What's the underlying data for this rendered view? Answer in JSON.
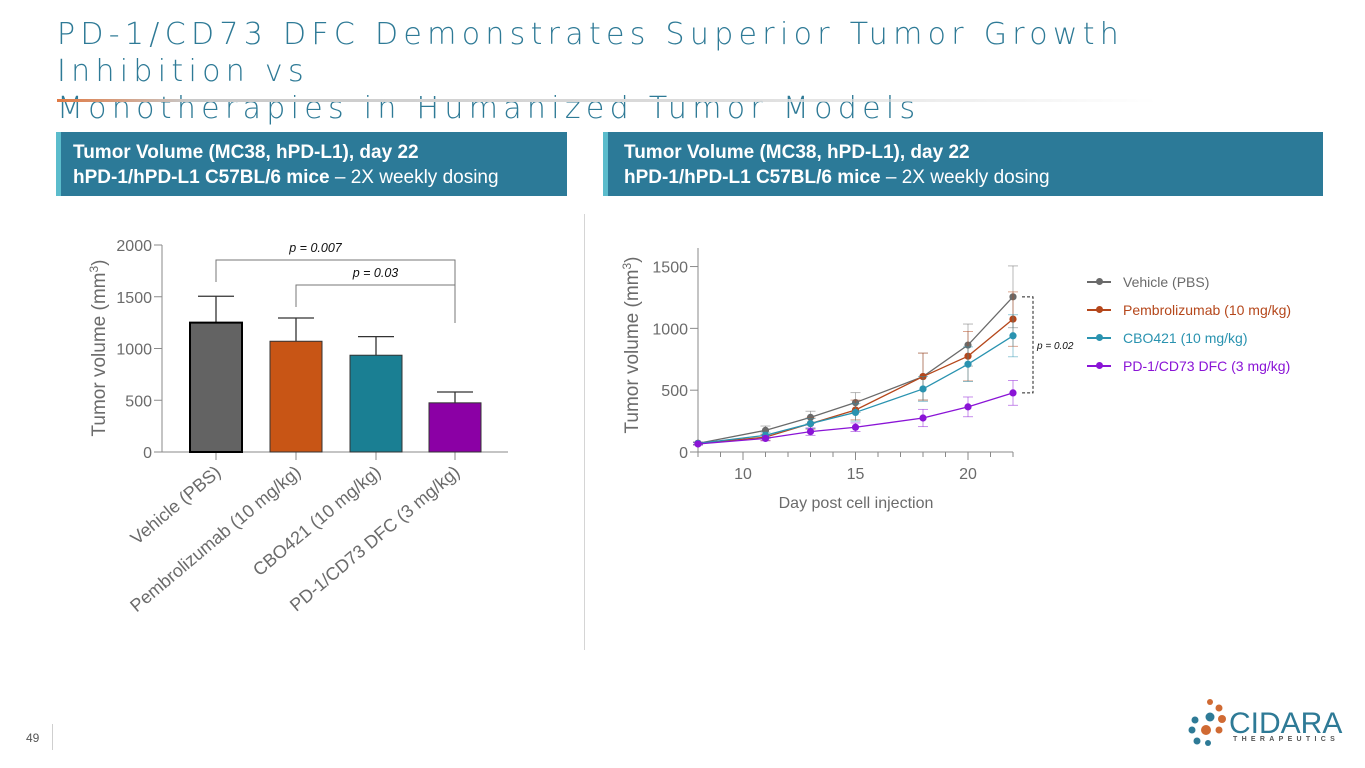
{
  "slide": {
    "title_line1": "PD-1/CD73 DFC Demonstrates Superior Tumor Growth Inhibition vs",
    "title_line2": "Monotherapies in Humanized Tumor Models",
    "page_number": "49",
    "accent_color": "#2e7a96",
    "rule_color": "#e07a44"
  },
  "left_panel": {
    "header_line1": "Tumor Volume (MC38, hPD-L1), day 22",
    "header_line2_bold": "hPD-1/hPD-L1 C57BL/6 mice",
    "header_line2_rest": " – 2X weekly dosing"
  },
  "right_panel": {
    "header_line1": "Tumor Volume  (MC38, hPD-L1), day 22",
    "header_line2_bold": "hPD-1/hPD-L1 C57BL/6 mice",
    "header_line2_rest": " – 2X weekly dosing"
  },
  "logo": {
    "name": "CIDARA",
    "subtitle": "THERAPEUTICS",
    "icon": "dot-cluster-icon"
  },
  "chart_data": [
    {
      "type": "bar",
      "title": "",
      "xlabel": "",
      "ylabel": "Tumor volume (mm³)",
      "ylabel_main": "Tumor volume (mm",
      "ylabel_sup": "3",
      "ylabel_close": ")",
      "ylim": [
        0,
        2000
      ],
      "yticks": [
        0,
        500,
        1000,
        1500,
        2000
      ],
      "ytick_labels": [
        "0",
        "500",
        "1000",
        "1500",
        "2000"
      ],
      "categories": [
        "Vehicle (PBS)",
        "Pembrolizumab (10 mg/kg)",
        "CBO421 (10 mg/kg)",
        "PD-1/CD73 DFC (3 mg/kg)"
      ],
      "values": [
        1250,
        1070,
        935,
        475
      ],
      "error_upper": [
        1505,
        1295,
        1115,
        580
      ],
      "colors": [
        "#636363",
        "#c85515",
        "#1a7f93",
        "#8b00a5"
      ],
      "annotations": [
        {
          "text": "p = 0.007",
          "from": 0,
          "to": 3
        },
        {
          "text": "p = 0.03",
          "from": 1,
          "to": 3
        }
      ],
      "grid": false
    },
    {
      "type": "line",
      "title": "",
      "xlabel": "Day post cell injection",
      "ylabel": "Tumor volume (mm³)",
      "ylabel_main": "Tumor volume (mm",
      "ylabel_sup": "3",
      "ylabel_close": ")",
      "xlim": [
        8,
        22
      ],
      "ylim": [
        0,
        1650
      ],
      "xticks": [
        10,
        15,
        20
      ],
      "xtick_labels": [
        "10",
        "15",
        "20"
      ],
      "yticks": [
        0,
        500,
        1000,
        1500
      ],
      "ytick_labels": [
        "0",
        "500",
        "1000",
        "1500"
      ],
      "x": [
        8,
        11,
        13,
        15,
        18,
        20,
        22
      ],
      "series": [
        {
          "name": "Vehicle (PBS)",
          "color": "#6a6a6a",
          "values": [
            70,
            175,
            280,
            400,
            610,
            865,
            1255
          ],
          "err": [
            10,
            35,
            50,
            80,
            190,
            170,
            250
          ]
        },
        {
          "name": "Pembrolizumab (10 mg/kg)",
          "color": "#b5471b",
          "values": [
            70,
            120,
            230,
            340,
            610,
            775,
            1075
          ],
          "err": [
            10,
            25,
            45,
            80,
            190,
            200,
            220
          ]
        },
        {
          "name": "CBO421 (10 mg/kg)",
          "color": "#2a93b0",
          "values": [
            70,
            135,
            230,
            320,
            510,
            710,
            940
          ],
          "err": [
            10,
            25,
            40,
            70,
            100,
            140,
            170
          ]
        },
        {
          "name": "PD-1/CD73 DFC (3 mg/kg)",
          "color": "#8a14d6",
          "values": [
            65,
            110,
            165,
            200,
            275,
            365,
            478
          ],
          "err": [
            10,
            20,
            30,
            35,
            70,
            80,
            100
          ]
        }
      ],
      "annotations": [
        {
          "text": "p = 0.02",
          "between": [
            "Vehicle (PBS)",
            "PD-1/CD73 DFC (3 mg/kg)"
          ],
          "at_x": 22
        }
      ],
      "legend_position": "right",
      "grid": false
    }
  ]
}
